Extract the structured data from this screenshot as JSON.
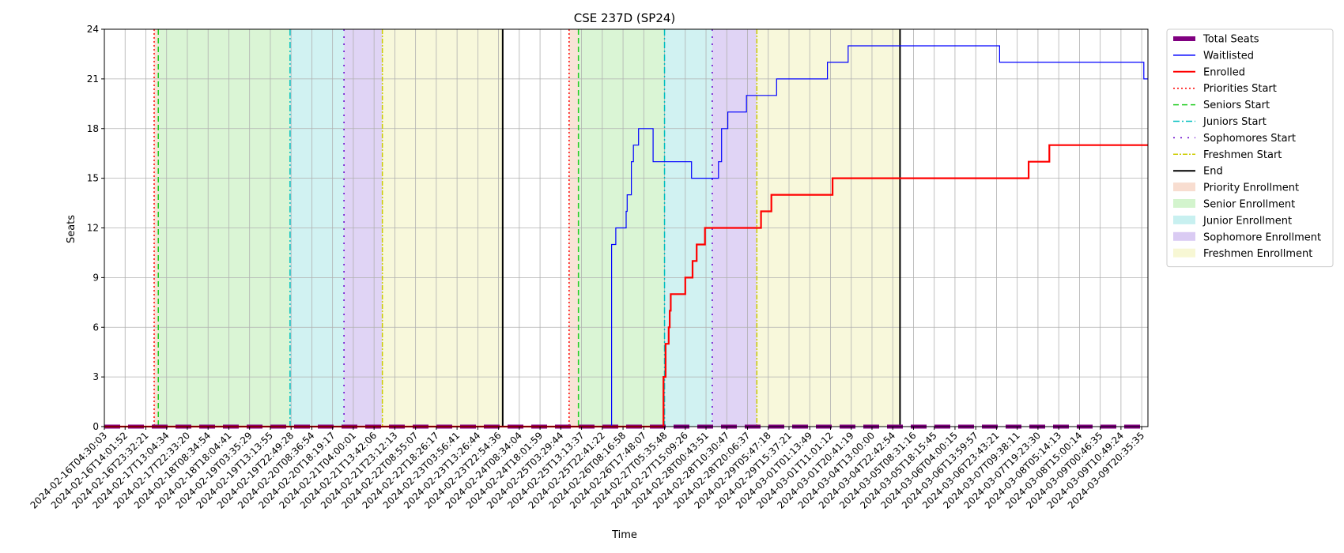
{
  "chart_data": {
    "type": "line",
    "title": "CSE 237D (SP24)",
    "xlabel": "Time",
    "ylabel": "Seats",
    "ylim": [
      0,
      24
    ],
    "yticks": [
      0,
      3,
      6,
      9,
      12,
      15,
      18,
      21,
      24
    ],
    "grid": true,
    "legend_position": "outside-right",
    "xticks": [
      "2024-02-16T04:30:03",
      "2024-02-16T14:01:52",
      "2024-02-16T23:32:21",
      "2024-02-17T13:04:34",
      "2024-02-17T22:33:20",
      "2024-02-18T08:34:54",
      "2024-02-18T18:04:41",
      "2024-02-19T03:35:29",
      "2024-02-19T13:13:55",
      "2024-02-19T22:49:28",
      "2024-02-20T08:36:54",
      "2024-02-20T18:19:17",
      "2024-02-21T04:00:01",
      "2024-02-21T13:42:06",
      "2024-02-21T23:12:13",
      "2024-02-22T08:55:07",
      "2024-02-22T18:26:17",
      "2024-02-23T03:56:41",
      "2024-02-23T13:26:44",
      "2024-02-23T22:54:36",
      "2024-02-24T08:34:04",
      "2024-02-24T18:01:59",
      "2024-02-25T03:29:44",
      "2024-02-25T13:13:37",
      "2024-02-25T22:41:22",
      "2024-02-26T08:16:58",
      "2024-02-26T17:48:07",
      "2024-02-27T05:35:48",
      "2024-02-27T15:09:26",
      "2024-02-28T00:43:51",
      "2024-02-28T10:30:47",
      "2024-02-28T20:06:37",
      "2024-02-29T05:47:18",
      "2024-02-29T15:37:21",
      "2024-03-01T01:13:49",
      "2024-03-01T11:01:12",
      "2024-03-01T20:41:19",
      "2024-03-04T13:00:00",
      "2024-03-04T22:42:54",
      "2024-03-05T08:31:16",
      "2024-03-05T18:15:45",
      "2024-03-06T04:00:15",
      "2024-03-06T13:59:57",
      "2024-03-06T23:43:21",
      "2024-03-07T09:38:11",
      "2024-03-07T19:23:30",
      "2024-03-08T05:14:13",
      "2024-03-08T15:00:14",
      "2024-03-09T00:46:35",
      "2024-03-09T10:49:24",
      "2024-03-09T20:35:35"
    ],
    "x_index_range": [
      0,
      50.3
    ],
    "series": [
      {
        "name": "Total Seats",
        "color": "#800080",
        "points": [
          [
            0,
            0
          ],
          [
            50.3,
            0
          ]
        ]
      },
      {
        "name": "Waitlisted",
        "color": "#0000ff",
        "points": [
          [
            0,
            0
          ],
          [
            21.5,
            0
          ],
          [
            21.5,
            0
          ],
          [
            24.45,
            0
          ],
          [
            24.45,
            11
          ],
          [
            24.65,
            11
          ],
          [
            24.65,
            12
          ],
          [
            25.15,
            12
          ],
          [
            25.15,
            13
          ],
          [
            25.2,
            13
          ],
          [
            25.2,
            14
          ],
          [
            25.4,
            14
          ],
          [
            25.4,
            16
          ],
          [
            25.5,
            16
          ],
          [
            25.5,
            17
          ],
          [
            25.75,
            17
          ],
          [
            25.75,
            18
          ],
          [
            26.45,
            18
          ],
          [
            26.45,
            16
          ],
          [
            28.3,
            16
          ],
          [
            28.3,
            15
          ],
          [
            29.6,
            15
          ],
          [
            29.6,
            16
          ],
          [
            29.75,
            16
          ],
          [
            29.75,
            18
          ],
          [
            30.05,
            18
          ],
          [
            30.05,
            19
          ],
          [
            30.95,
            19
          ],
          [
            30.95,
            20
          ],
          [
            32.4,
            20
          ],
          [
            32.4,
            21
          ],
          [
            34.85,
            21
          ],
          [
            34.85,
            22
          ],
          [
            35.85,
            22
          ],
          [
            35.85,
            23
          ],
          [
            43.15,
            23
          ],
          [
            43.15,
            22
          ],
          [
            50.1,
            22
          ],
          [
            50.1,
            21
          ],
          [
            50.3,
            21
          ]
        ]
      },
      {
        "name": "Enrolled",
        "color": "#ff0000",
        "points": [
          [
            0,
            0
          ],
          [
            26.95,
            0
          ],
          [
            26.95,
            3
          ],
          [
            27.05,
            3
          ],
          [
            27.05,
            5
          ],
          [
            27.2,
            5
          ],
          [
            27.2,
            6
          ],
          [
            27.25,
            6
          ],
          [
            27.25,
            7
          ],
          [
            27.3,
            7
          ],
          [
            27.3,
            8
          ],
          [
            28.0,
            8
          ],
          [
            28.0,
            9
          ],
          [
            28.35,
            9
          ],
          [
            28.35,
            10
          ],
          [
            28.55,
            10
          ],
          [
            28.55,
            11
          ],
          [
            28.95,
            11
          ],
          [
            28.95,
            12
          ],
          [
            31.65,
            12
          ],
          [
            31.65,
            13
          ],
          [
            32.15,
            13
          ],
          [
            32.15,
            14
          ],
          [
            35.1,
            14
          ],
          [
            35.1,
            15
          ],
          [
            44.55,
            15
          ],
          [
            44.55,
            16
          ],
          [
            45.55,
            16
          ],
          [
            45.55,
            17
          ],
          [
            50.3,
            17
          ]
        ]
      }
    ],
    "markers": [
      {
        "name": "Priorities Start",
        "x": 2.4,
        "color": "#ff0000",
        "dash": "2,3"
      },
      {
        "name": "Seniors Start",
        "x": 2.6,
        "color": "#22cc22",
        "dash": "7,4"
      },
      {
        "name": "Juniors Start",
        "x": 8.95,
        "color": "#00bfbf",
        "dash": "8,3,2,3"
      },
      {
        "name": "Sophomores Start",
        "x": 11.55,
        "color": "#6600cc",
        "dash": "2,7"
      },
      {
        "name": "Freshmen Start",
        "x": 13.4,
        "color": "#cccc00",
        "dash": "6,2,2,2"
      },
      {
        "name": "End",
        "x": 19.2,
        "color": "#000000",
        "dash": ""
      },
      {
        "name": "Priorities Start",
        "x": 22.4,
        "color": "#ff0000",
        "dash": "2,3"
      },
      {
        "name": "Seniors Start",
        "x": 22.85,
        "color": "#22cc22",
        "dash": "7,4"
      },
      {
        "name": "Juniors Start",
        "x": 27.0,
        "color": "#00bfbf",
        "dash": "8,3,2,3"
      },
      {
        "name": "Sophomores Start",
        "x": 29.3,
        "color": "#6600cc",
        "dash": "2,7"
      },
      {
        "name": "Freshmen Start",
        "x": 31.45,
        "color": "#cccc00",
        "dash": "6,2,2,2"
      },
      {
        "name": "End",
        "x": 38.35,
        "color": "#000000",
        "dash": ""
      }
    ],
    "regions": [
      {
        "name": "Priority Enrollment",
        "from": 2.4,
        "to": 2.6,
        "color": "#f4c7b0"
      },
      {
        "name": "Senior Enrollment",
        "from": 2.6,
        "to": 8.95,
        "color": "#b6ecac"
      },
      {
        "name": "Junior Enrollment",
        "from": 8.95,
        "to": 11.55,
        "color": "#a3e6e6"
      },
      {
        "name": "Sophomore Enrollment",
        "from": 11.55,
        "to": 13.4,
        "color": "#c2a9eb"
      },
      {
        "name": "Freshmen Enrollment",
        "from": 13.4,
        "to": 19.2,
        "color": "#f2f2b8"
      },
      {
        "name": "Priority Enrollment",
        "from": 22.4,
        "to": 22.85,
        "color": "#f4c7b0"
      },
      {
        "name": "Senior Enrollment",
        "from": 22.85,
        "to": 27.0,
        "color": "#b6ecac"
      },
      {
        "name": "Junior Enrollment",
        "from": 27.0,
        "to": 29.3,
        "color": "#a3e6e6"
      },
      {
        "name": "Sophomore Enrollment",
        "from": 29.3,
        "to": 31.45,
        "color": "#c2a9eb"
      },
      {
        "name": "Freshmen Enrollment",
        "from": 31.45,
        "to": 38.35,
        "color": "#f2f2b8"
      }
    ],
    "legend": [
      {
        "label": "Total Seats",
        "kind": "thickline",
        "color": "#800080"
      },
      {
        "label": "Waitlisted",
        "kind": "line",
        "color": "#0000ff"
      },
      {
        "label": "Enrolled",
        "kind": "line2",
        "color": "#ff0000"
      },
      {
        "label": "Priorities Start",
        "kind": "dash",
        "color": "#ff0000",
        "dash": "2,3"
      },
      {
        "label": "Seniors Start",
        "kind": "dash",
        "color": "#22cc22",
        "dash": "7,4"
      },
      {
        "label": "Juniors Start",
        "kind": "dash",
        "color": "#00bfbf",
        "dash": "8,3,2,3"
      },
      {
        "label": "Sophomores Start",
        "kind": "dash",
        "color": "#6600cc",
        "dash": "2,7"
      },
      {
        "label": "Freshmen Start",
        "kind": "dash",
        "color": "#cccc00",
        "dash": "6,2,2,2"
      },
      {
        "label": "End",
        "kind": "line2",
        "color": "#000000"
      },
      {
        "label": "Priority Enrollment",
        "kind": "patch",
        "color": "#f4c7b0"
      },
      {
        "label": "Senior Enrollment",
        "kind": "patch",
        "color": "#b6ecac"
      },
      {
        "label": "Junior Enrollment",
        "kind": "patch",
        "color": "#a3e6e6"
      },
      {
        "label": "Sophomore Enrollment",
        "kind": "patch",
        "color": "#c2a9eb"
      },
      {
        "label": "Freshmen Enrollment",
        "kind": "patch",
        "color": "#f2f2b8"
      }
    ]
  }
}
